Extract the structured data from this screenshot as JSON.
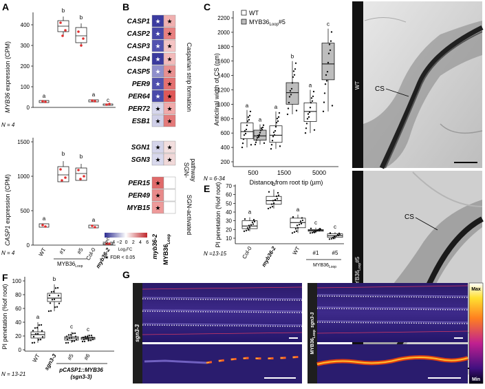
{
  "panels": {
    "A": {
      "letter": "A",
      "top": {
        "ylabel_gene": "MYB36",
        "ylabel_unit": " expression (CPM)",
        "ticks": [
          "0",
          "100",
          "200",
          "300",
          "400"
        ],
        "letters": [
          "a",
          "b",
          "b",
          "a",
          "c"
        ],
        "n_label": "N = 4"
      },
      "bottom": {
        "ylabel_gene": "CASP1",
        "ylabel_unit": " expression (CPM)",
        "ticks": [
          "0",
          "500",
          "1000",
          "1500"
        ],
        "letters": [
          "a",
          "b",
          "b",
          "a",
          "c"
        ],
        "n_label": "N = 4"
      },
      "categories": [
        "WT",
        "#1",
        "#5",
        "Col-0",
        "myb36-2"
      ],
      "group_label": "MYB36",
      "group_sub": "Loop"
    },
    "B": {
      "letter": "B",
      "genes": [
        "CASP1",
        "CASP2",
        "CASP3",
        "CASP4",
        "CASP5",
        "PER9",
        "PER64",
        "PER72",
        "ESB1",
        "SGN1",
        "SGN3",
        "PER15",
        "PER49",
        "MYB15"
      ],
      "col1": [
        "#3b3ba0",
        "#4646a8",
        "#5252b0",
        "#3a3a9e",
        "#8f8fcc",
        "#5050ae",
        "#4a4aaa",
        "#d6d6ec",
        "#cfcfe8",
        "#d4d4ea",
        "#d8d8ec",
        "#e06a6a",
        "#e88a8a",
        "#ee9a9a"
      ],
      "col2": [
        "#f0b0b0",
        "#e88080",
        "#f4c4c4",
        "#f2baba",
        "#e89090",
        "#e47070",
        "#e05858",
        "#f0aaaa",
        "#e47a7a",
        "#f2dede",
        "#f0d8d8",
        "#ffffff",
        "#ffffff",
        "#ffffff"
      ],
      "star1": [
        true,
        true,
        true,
        true,
        true,
        true,
        true,
        true,
        true,
        true,
        true,
        true,
        true,
        true
      ],
      "star2": [
        true,
        true,
        true,
        true,
        true,
        true,
        true,
        true,
        true,
        true,
        true,
        false,
        false,
        false
      ],
      "group1": "Casparian strip formation",
      "group2_a": "SGN-",
      "group2_b": "pathway",
      "group3": "SGN-activated",
      "legend_ticks": [
        "−6",
        "−4",
        "−2",
        "0",
        "2",
        "4",
        "6"
      ],
      "legend_label": "Log₂FC",
      "fdr_label": "★ FDR < 0.05",
      "col_labels": [
        "myb36-2",
        "MYB36"
      ],
      "col_label_sub": "Loop"
    },
    "C": {
      "letter": "C",
      "legend_wt": "WT",
      "legend_loop": "MYB36",
      "legend_loop_sub": "Loop",
      "legend_loop_suffix": "#5",
      "ylabel": "Anticlinal width of CS (nm)",
      "xlabel": "Distance from root tip (µm)",
      "yticks": [
        "200",
        "400",
        "600",
        "800",
        "1000",
        "1200",
        "1400",
        "1600",
        "1800",
        "2000",
        "2200"
      ],
      "xcats": [
        "500",
        "1500",
        "5000"
      ],
      "letters": [
        "a",
        "a",
        "a",
        "b",
        "a",
        "c"
      ],
      "n_label": "N = 6-34"
    },
    "D": {
      "letter": "D",
      "label_wt": "WT",
      "label_loop": "MYB36",
      "label_loop_sub": "Loop",
      "label_loop_suffix": "#5",
      "cs1": "CS",
      "cs2": "CS"
    },
    "E": {
      "letter": "E",
      "ylabel": "PI penetation (%of root)",
      "yticks": [
        "10",
        "20",
        "30",
        "40",
        "50",
        "60",
        "70"
      ],
      "cats": [
        "Col-0",
        "myb36-2",
        "WT",
        "#1",
        "#5"
      ],
      "letters": [
        "a",
        "b",
        "a",
        "c",
        "c"
      ],
      "group_label": "MYB36",
      "group_sub": "Loop",
      "n_label": "N =13-15"
    },
    "F": {
      "letter": "F",
      "ylabel": "PI penetation (%of root)",
      "yticks": [
        "0",
        "20",
        "40",
        "60",
        "80",
        "100"
      ],
      "cats": [
        "WT",
        "sgn3-3",
        "#5",
        "#6"
      ],
      "letters": [
        "a",
        "b",
        "c",
        "c"
      ],
      "group_label": "pCASP1::MYB36",
      "group_label2": "(sgn3-3)",
      "n_label": "N = 13-21"
    },
    "G": {
      "letter": "G",
      "label_left": "sgn3-3",
      "label_right_a": "MYB36",
      "label_right_sub": "Loop",
      "label_right_b": "sgn3-3",
      "scale_max": "Max",
      "scale_min": "Min"
    }
  }
}
